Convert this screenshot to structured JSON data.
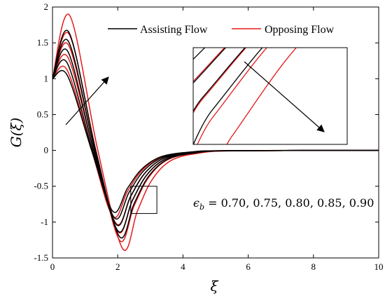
{
  "chart_data": {
    "type": "line",
    "xlabel": "ξ",
    "ylabel": "G(ξ)",
    "xlim": [
      0,
      10
    ],
    "ylim": [
      -1.5,
      2
    ],
    "xticks": [
      "0",
      "2",
      "4",
      "6",
      "8",
      "10"
    ],
    "yticks": [
      "-1.5",
      "-1",
      "-0.5",
      "0",
      "0.5",
      "1",
      "1.5",
      "2"
    ],
    "legend": {
      "position": "top-right",
      "entries": [
        {
          "label": "Assisting Flow",
          "color": "#000000"
        },
        {
          "label": "Opposing Flow",
          "color": "#e41a1c"
        }
      ]
    },
    "annotation": {
      "prefix": "ϵ",
      "subscript": "b",
      "text": " = 0.70, 0.75, 0.80, 0.85, 0.90"
    },
    "parameter_values": [
      0.7,
      0.75,
      0.8,
      0.85,
      0.9
    ],
    "grid": false,
    "inset": {
      "xlim": [
        2.4,
        3.2
      ],
      "ylim": [
        -0.88,
        -0.5
      ],
      "arrow_direction": "down-right"
    },
    "series": [
      {
        "group": "assisting",
        "color": "#000000",
        "peak": [
          0.45,
          1.05
        ],
        "trough": [
          1.85,
          -0.85
        ]
      },
      {
        "group": "assisting",
        "color": "#000000",
        "peak": [
          0.45,
          1.22
        ],
        "trough": [
          1.9,
          -0.94
        ]
      },
      {
        "group": "assisting",
        "color": "#000000",
        "peak": [
          0.47,
          1.38
        ],
        "trough": [
          1.95,
          -1.03
        ]
      },
      {
        "group": "assisting",
        "color": "#000000",
        "peak": [
          0.49,
          1.52
        ],
        "trough": [
          2.0,
          -1.12
        ]
      },
      {
        "group": "assisting",
        "color": "#000000",
        "peak": [
          0.5,
          1.65
        ],
        "trough": [
          2.05,
          -1.2
        ]
      },
      {
        "group": "opposing",
        "color": "#e41a1c",
        "peak": [
          0.45,
          1.12
        ],
        "trough": [
          1.85,
          -0.92
        ]
      },
      {
        "group": "opposing",
        "color": "#e41a1c",
        "peak": [
          0.47,
          1.3
        ],
        "trough": [
          1.95,
          -1.02
        ]
      },
      {
        "group": "opposing",
        "color": "#e41a1c",
        "peak": [
          0.49,
          1.47
        ],
        "trough": [
          2.0,
          -1.13
        ]
      },
      {
        "group": "opposing",
        "color": "#e41a1c",
        "peak": [
          0.51,
          1.62
        ],
        "trough": [
          2.05,
          -1.25
        ]
      },
      {
        "group": "opposing",
        "color": "#e41a1c",
        "peak": [
          0.53,
          1.88
        ],
        "trough": [
          2.15,
          -1.37
        ]
      }
    ]
  }
}
